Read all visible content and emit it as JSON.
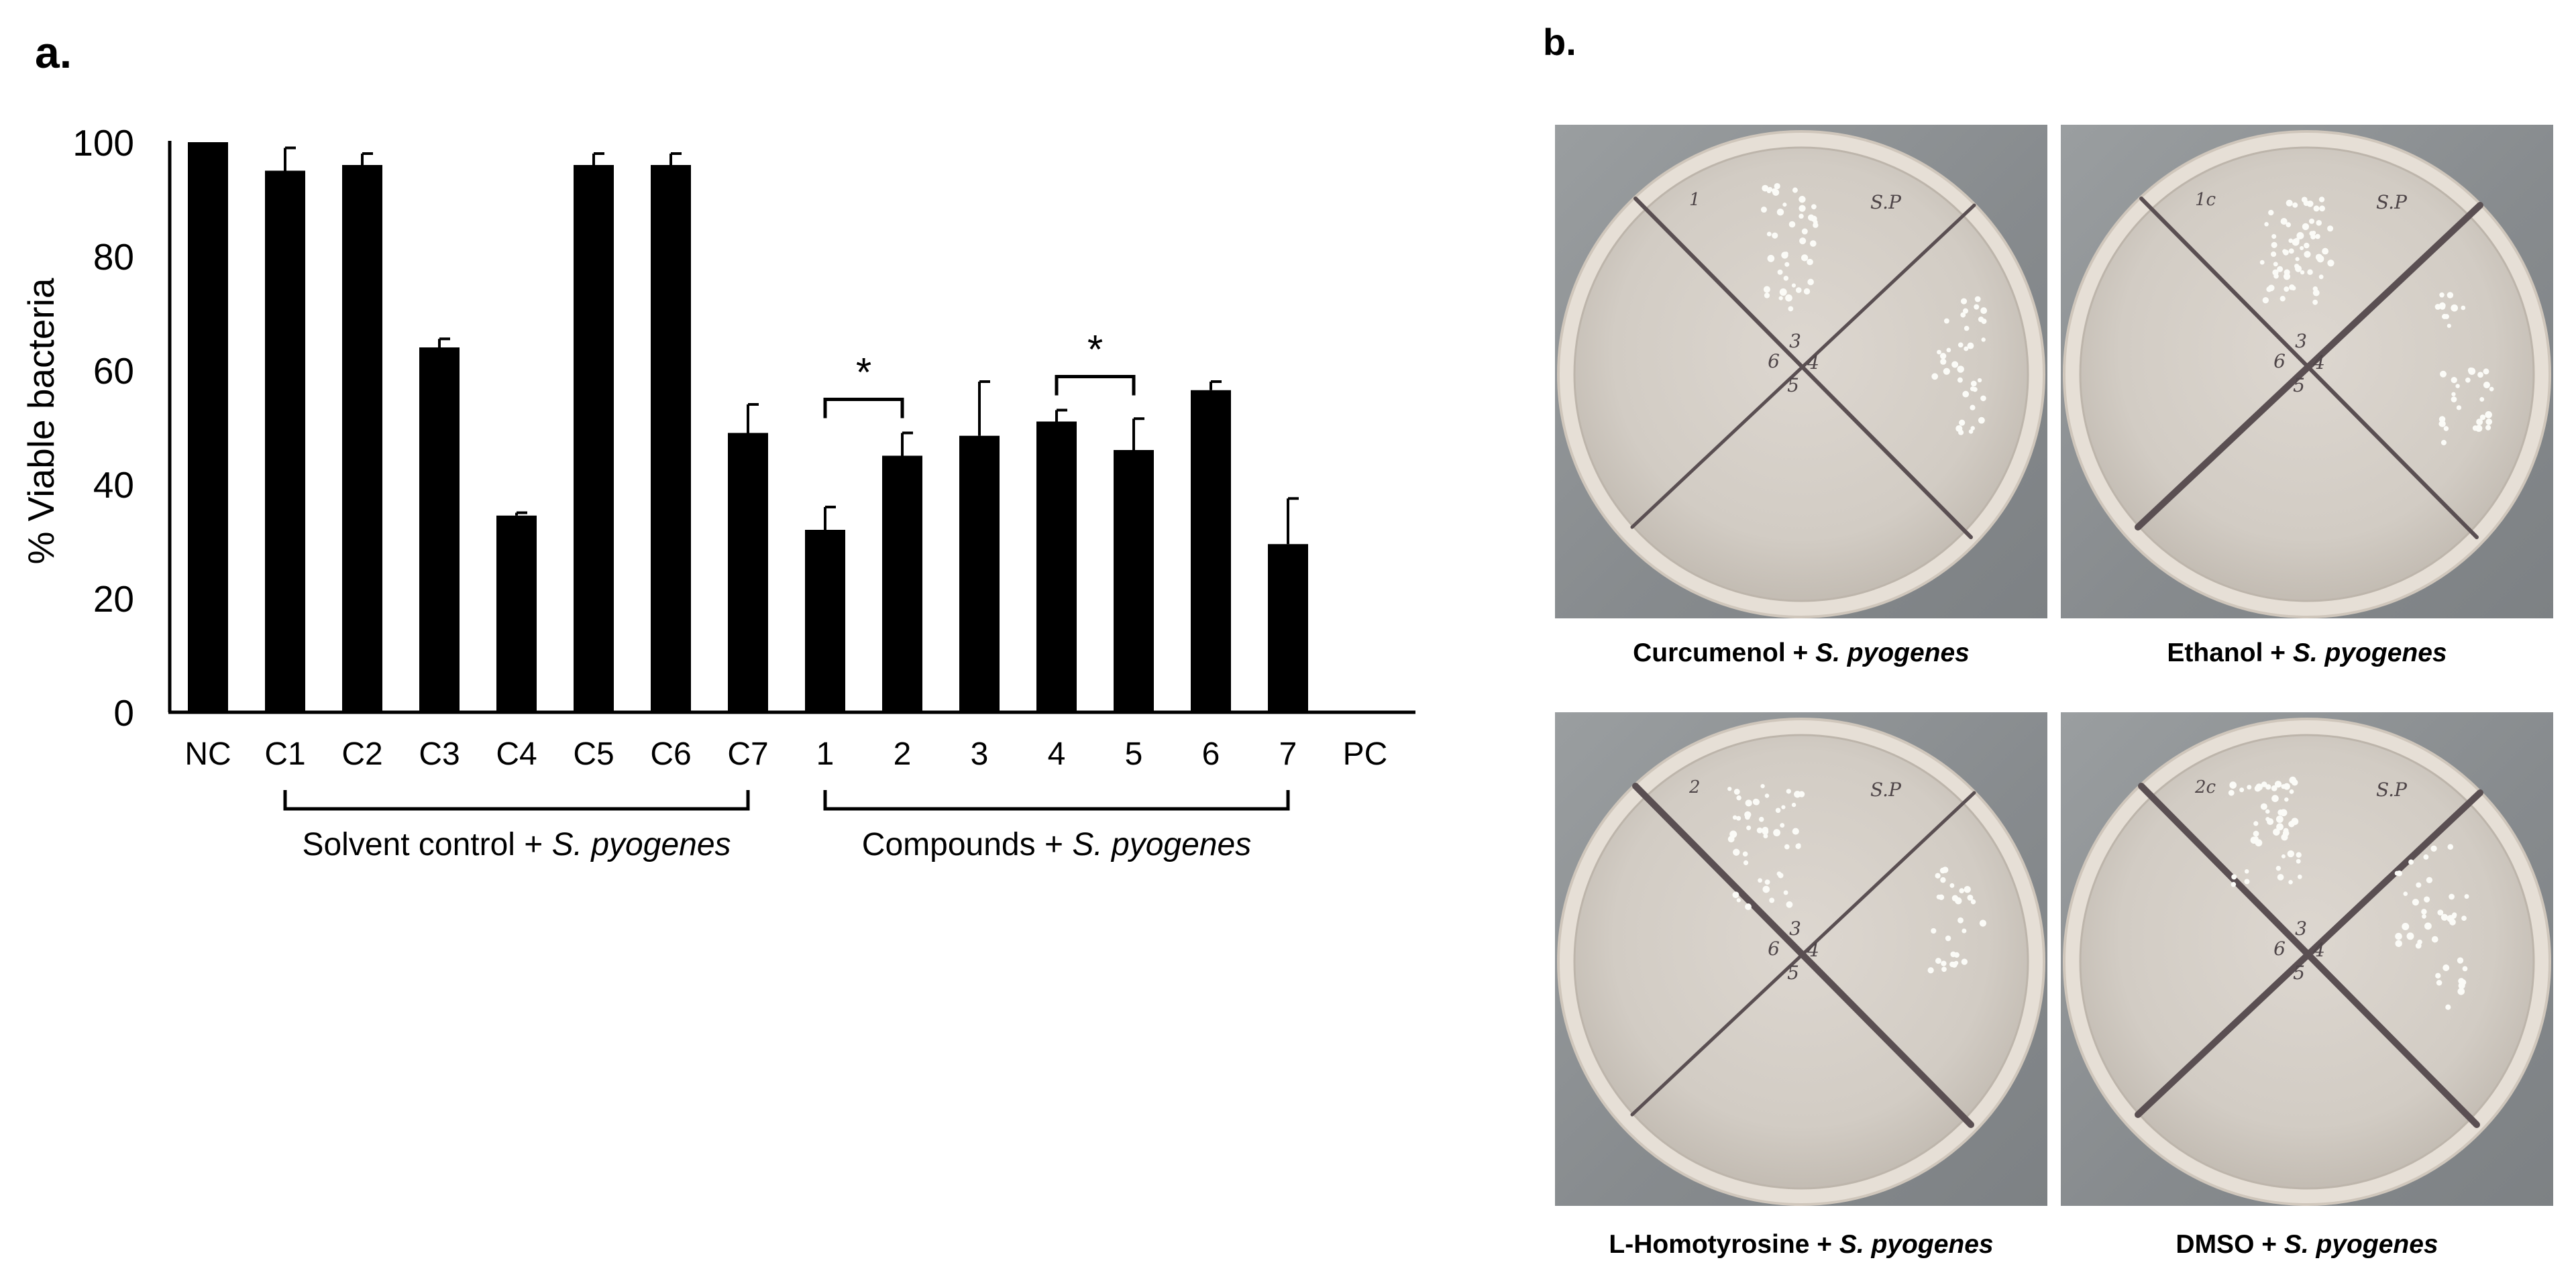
{
  "panel_a": {
    "letter": "a."
  },
  "panel_b": {
    "letter": "b.",
    "plates": [
      {
        "compound": "Curcumenol",
        "connector": " + ",
        "organism": "S. pyogenes",
        "marks": {
          "top_left": "1",
          "top_right": "S.P",
          "center": [
            "3",
            "4",
            "5",
            "6"
          ]
        }
      },
      {
        "compound": "Ethanol",
        "connector": " + ",
        "organism": "S. pyogenes",
        "marks": {
          "top_left": "1c",
          "top_right": "S.P",
          "center": [
            "3",
            "4",
            "5",
            "6"
          ]
        }
      },
      {
        "compound": "L-Homotyrosine",
        "connector": " + ",
        "organism": "S. pyogenes",
        "marks": {
          "top_left": "2",
          "top_right": "S.P",
          "center": [
            "3",
            "4",
            "5",
            "6"
          ]
        }
      },
      {
        "compound": "DMSO",
        "connector": " + ",
        "organism": "S. pyogenes",
        "marks": {
          "top_left": "2c",
          "top_right": "S.P",
          "center": [
            "3",
            "4",
            "5",
            "6"
          ]
        }
      }
    ]
  },
  "chart_data": {
    "type": "bar",
    "ylabel": "% Viable bacteria",
    "xlabel": "",
    "ylim": [
      0,
      100
    ],
    "yticks": [
      0,
      20,
      40,
      60,
      80,
      100
    ],
    "grid": false,
    "legend": "none",
    "categories": [
      "NC",
      "C1",
      "C2",
      "C3",
      "C4",
      "C5",
      "C6",
      "C7",
      "1",
      "2",
      "3",
      "4",
      "5",
      "6",
      "7",
      "PC"
    ],
    "series": [
      {
        "values": [
          100,
          95,
          96,
          64,
          34.5,
          96,
          96,
          49,
          32,
          45,
          48.5,
          51,
          46,
          56.5,
          29.5,
          0
        ],
        "error": [
          0,
          4,
          2,
          1.5,
          0.5,
          2,
          2,
          5,
          4,
          4,
          9.5,
          2,
          5.5,
          1.5,
          8,
          0
        ]
      }
    ],
    "groups": [
      {
        "label_prefix": "Solvent control + ",
        "label_italic": "S. pyogenes",
        "from": "C1",
        "to": "C7"
      },
      {
        "label_prefix": "Compounds + ",
        "label_italic": "S. pyogenes",
        "from": "1",
        "to": "7"
      }
    ],
    "significance": [
      {
        "from": "1",
        "to": "2",
        "label": "*"
      },
      {
        "from": "4",
        "to": "5",
        "label": "*"
      }
    ],
    "colors": {
      "bar": "#000000",
      "axis": "#000000"
    }
  }
}
